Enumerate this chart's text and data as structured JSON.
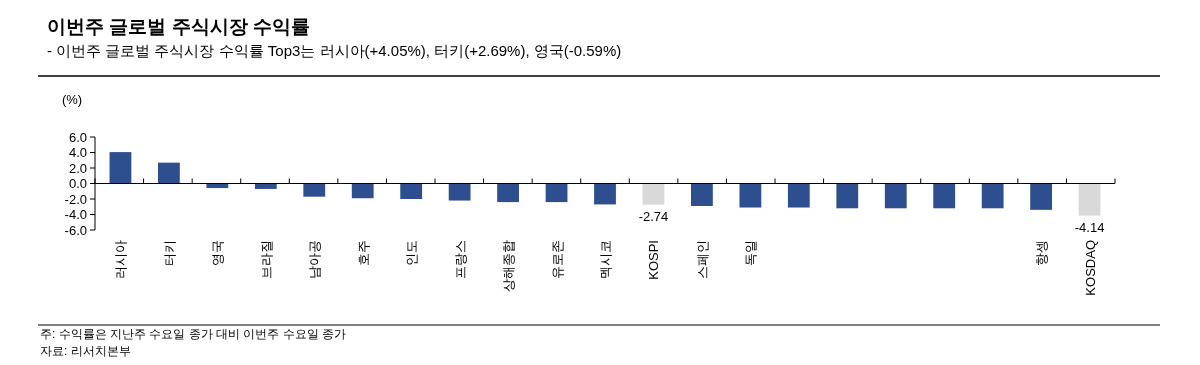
{
  "chart_data": {
    "type": "bar",
    "title": "이번주 글로벌 주식시장 수익률",
    "subtitle": "- 이번주 글로벌 주식시장 수익률 Top3는 러시아(+4.05%), 터키(+2.69%), 영국(-0.59%)",
    "ylabel": "(%)",
    "categories": [
      "러시아",
      "터키",
      "영국",
      "브라질",
      "남아공",
      "호주",
      "인도",
      "프랑스",
      "상해종합",
      "유로존",
      "멕시코",
      "KOSPI",
      "스페인",
      "독일",
      null,
      null,
      null,
      null,
      null,
      "항셍",
      "KOSDAQ"
    ],
    "values": [
      4.05,
      2.69,
      -0.59,
      -0.7,
      -1.7,
      -1.9,
      -2.0,
      -2.2,
      -2.4,
      -2.4,
      -2.7,
      -2.74,
      -2.9,
      -3.1,
      -3.1,
      -3.2,
      -3.2,
      -3.2,
      -3.2,
      -3.4,
      -4.14
    ],
    "colors": [
      "#2e4f8f",
      "#2e4f8f",
      "#2e4f8f",
      "#2e4f8f",
      "#2e4f8f",
      "#2e4f8f",
      "#2e4f8f",
      "#2e4f8f",
      "#2e4f8f",
      "#2e4f8f",
      "#2e4f8f",
      "#d9d9d9",
      "#2e4f8f",
      "#2e4f8f",
      "#2e4f8f",
      "#2e4f8f",
      "#2e4f8f",
      "#2e4f8f",
      "#2e4f8f",
      "#2e4f8f",
      "#d9d9d9"
    ],
    "value_labels": [
      null,
      null,
      null,
      null,
      null,
      null,
      null,
      null,
      null,
      null,
      null,
      "-2.74",
      null,
      null,
      null,
      null,
      null,
      null,
      null,
      null,
      "-4.14"
    ],
    "ylim": [
      -6,
      6
    ],
    "yticks": [
      {
        "value": 6,
        "label": "6.0"
      },
      {
        "value": 4,
        "label": "4.0"
      },
      {
        "value": 2,
        "label": "2.0"
      },
      {
        "value": 0,
        "label": "0.0"
      },
      {
        "value": -2,
        "label": "-2.0"
      },
      {
        "value": -4,
        "label": "-4.0"
      },
      {
        "value": -6,
        "label": "-6.0"
      }
    ],
    "annotations": [
      "주: 수익률은 지난주 수요일 종가 대비 이번주 수요일 종가",
      "자료: 리서치본부"
    ]
  }
}
